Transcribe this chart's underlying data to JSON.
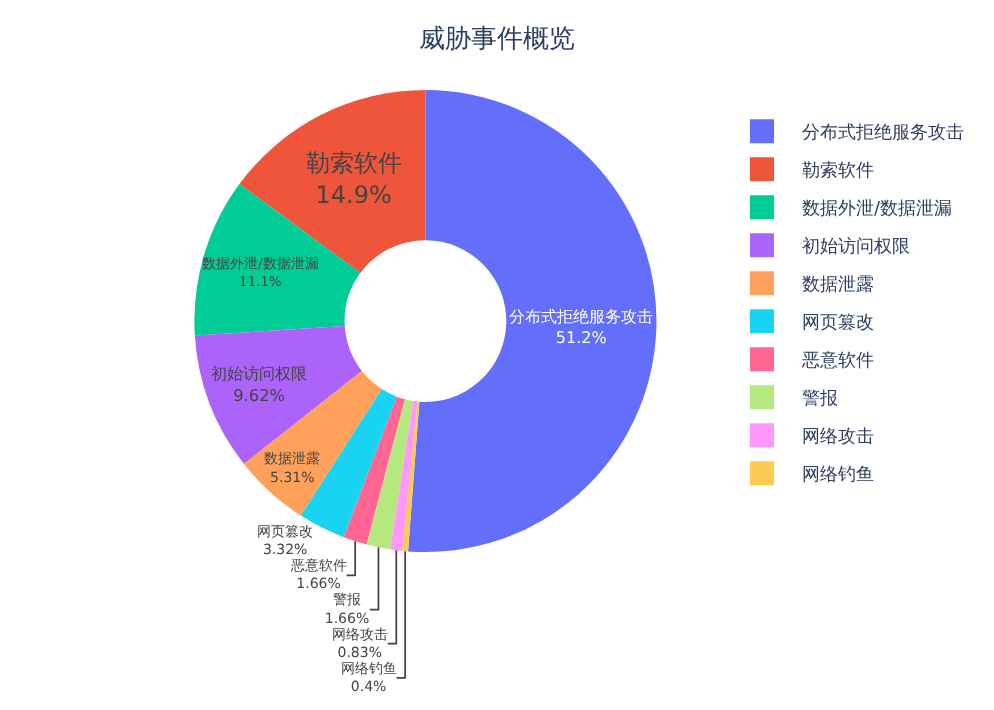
{
  "chart_data": {
    "type": "donut",
    "title": "威胁事件概览",
    "categories": [
      "分布式拒绝服务攻击",
      "勒索软件",
      "数据外泄/数据泄漏",
      "初始访问权限",
      "数据泄露",
      "网页篡改",
      "恶意软件",
      "警报",
      "网络攻击",
      "网络钓鱼"
    ],
    "values": [
      51.2,
      14.9,
      11.1,
      9.62,
      5.31,
      3.32,
      1.66,
      1.66,
      0.83,
      0.4
    ],
    "value_labels": [
      "51.2%",
      "14.9%",
      "11.1%",
      "9.62%",
      "5.31%",
      "3.32%",
      "1.66%",
      "1.66%",
      "0.83%",
      "0.4%"
    ],
    "colors": [
      "#636efa",
      "#ef553b",
      "#00cc96",
      "#ab63fa",
      "#ffa15a",
      "#19d3f3",
      "#ff6692",
      "#b6e880",
      "#ff97ff",
      "#fecb52"
    ],
    "legend": "top right"
  }
}
